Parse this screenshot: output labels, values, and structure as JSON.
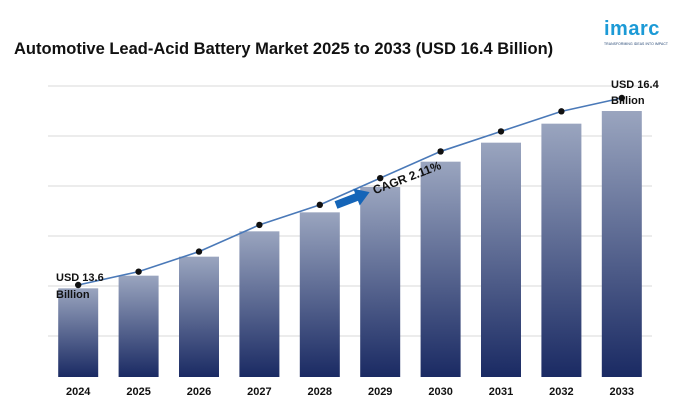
{
  "brand": {
    "name": "imarc",
    "tagline": "TRANSFORMING IDEAS INTO IMPACT"
  },
  "chart_data": {
    "type": "bar",
    "title": "Automotive Lead-Acid Battery Market 2025 to 2033 (USD 16.4 Billion)",
    "categories": [
      "2024",
      "2025",
      "2026",
      "2027",
      "2028",
      "2029",
      "2030",
      "2031",
      "2032",
      "2033"
    ],
    "values": [
      13.6,
      13.8,
      14.1,
      14.5,
      14.8,
      15.2,
      15.6,
      15.9,
      16.2,
      16.4
    ],
    "line_values": [
      13.6,
      13.8,
      14.1,
      14.5,
      14.8,
      15.2,
      15.6,
      15.9,
      16.2,
      16.4
    ],
    "start_label": [
      "USD 13.6",
      "Billion"
    ],
    "end_label": [
      "USD 16.4",
      "Billion"
    ],
    "annotation": "CAGR 2.11%",
    "grid": true,
    "colors": {
      "bar_top": "#9aa5bf",
      "bar_bottom": "#1a2a63",
      "line": "#4a79b8",
      "marker": "#111111",
      "arrow": "#1565b8",
      "grid": "#d9d9d9"
    }
  }
}
